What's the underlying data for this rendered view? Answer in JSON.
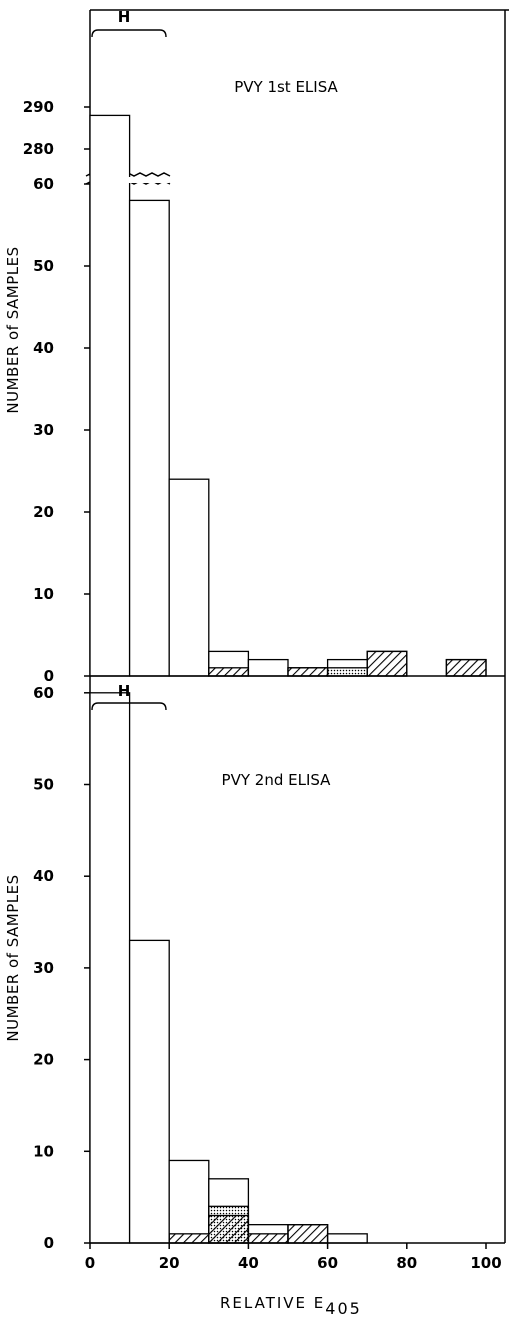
{
  "chart_data": [
    {
      "type": "bar",
      "title": "PVY 1st ELISA",
      "ylabel": "NUMBER of SAMPLES",
      "xlabel": "",
      "range_marker": {
        "label": "H",
        "x": [
          0,
          20
        ]
      },
      "x_ticks": [],
      "y_ticks": [
        "0",
        "10",
        "20",
        "30",
        "40",
        "50",
        "60",
        "280",
        "290"
      ],
      "y_break": true,
      "bins": [
        [
          0,
          10
        ],
        [
          10,
          20
        ],
        [
          20,
          30
        ],
        [
          30,
          40
        ],
        [
          40,
          50
        ],
        [
          50,
          60
        ],
        [
          60,
          70
        ],
        [
          70,
          80
        ],
        [
          80,
          90
        ],
        [
          90,
          100
        ]
      ],
      "series": [
        {
          "style": "open",
          "values": [
            288,
            58,
            24,
            3,
            2,
            1,
            2,
            3,
            0,
            2
          ]
        },
        {
          "style": "dotted",
          "values": [
            0,
            0,
            0,
            0,
            0,
            0,
            1,
            0,
            0,
            0
          ]
        },
        {
          "style": "hatched",
          "values": [
            0,
            0,
            0,
            1,
            0,
            1,
            0,
            3,
            0,
            2
          ]
        }
      ]
    },
    {
      "type": "bar",
      "title": "PVY 2nd ELISA",
      "ylabel": "NUMBER of SAMPLES",
      "xlabel": "RELATIVE E405",
      "range_marker": {
        "label": "H",
        "x": [
          0,
          20
        ]
      },
      "x_ticks": [
        "0",
        "20",
        "40",
        "60",
        "80",
        "100"
      ],
      "y_ticks": [
        "0",
        "10",
        "20",
        "30",
        "40",
        "50",
        "60"
      ],
      "bins": [
        [
          0,
          10
        ],
        [
          10,
          20
        ],
        [
          20,
          30
        ],
        [
          30,
          40
        ],
        [
          40,
          50
        ],
        [
          50,
          60
        ],
        [
          60,
          70
        ],
        [
          70,
          80
        ],
        [
          80,
          90
        ],
        [
          90,
          100
        ]
      ],
      "series": [
        {
          "style": "open",
          "values": [
            60,
            33,
            9,
            7,
            2,
            2,
            1,
            0,
            0,
            0
          ]
        },
        {
          "style": "dotted",
          "values": [
            0,
            0,
            0,
            4,
            0,
            0,
            0,
            0,
            0,
            0
          ]
        },
        {
          "style": "hatched",
          "values": [
            0,
            0,
            1,
            3,
            1,
            2,
            0,
            0,
            0,
            0
          ]
        }
      ]
    }
  ]
}
